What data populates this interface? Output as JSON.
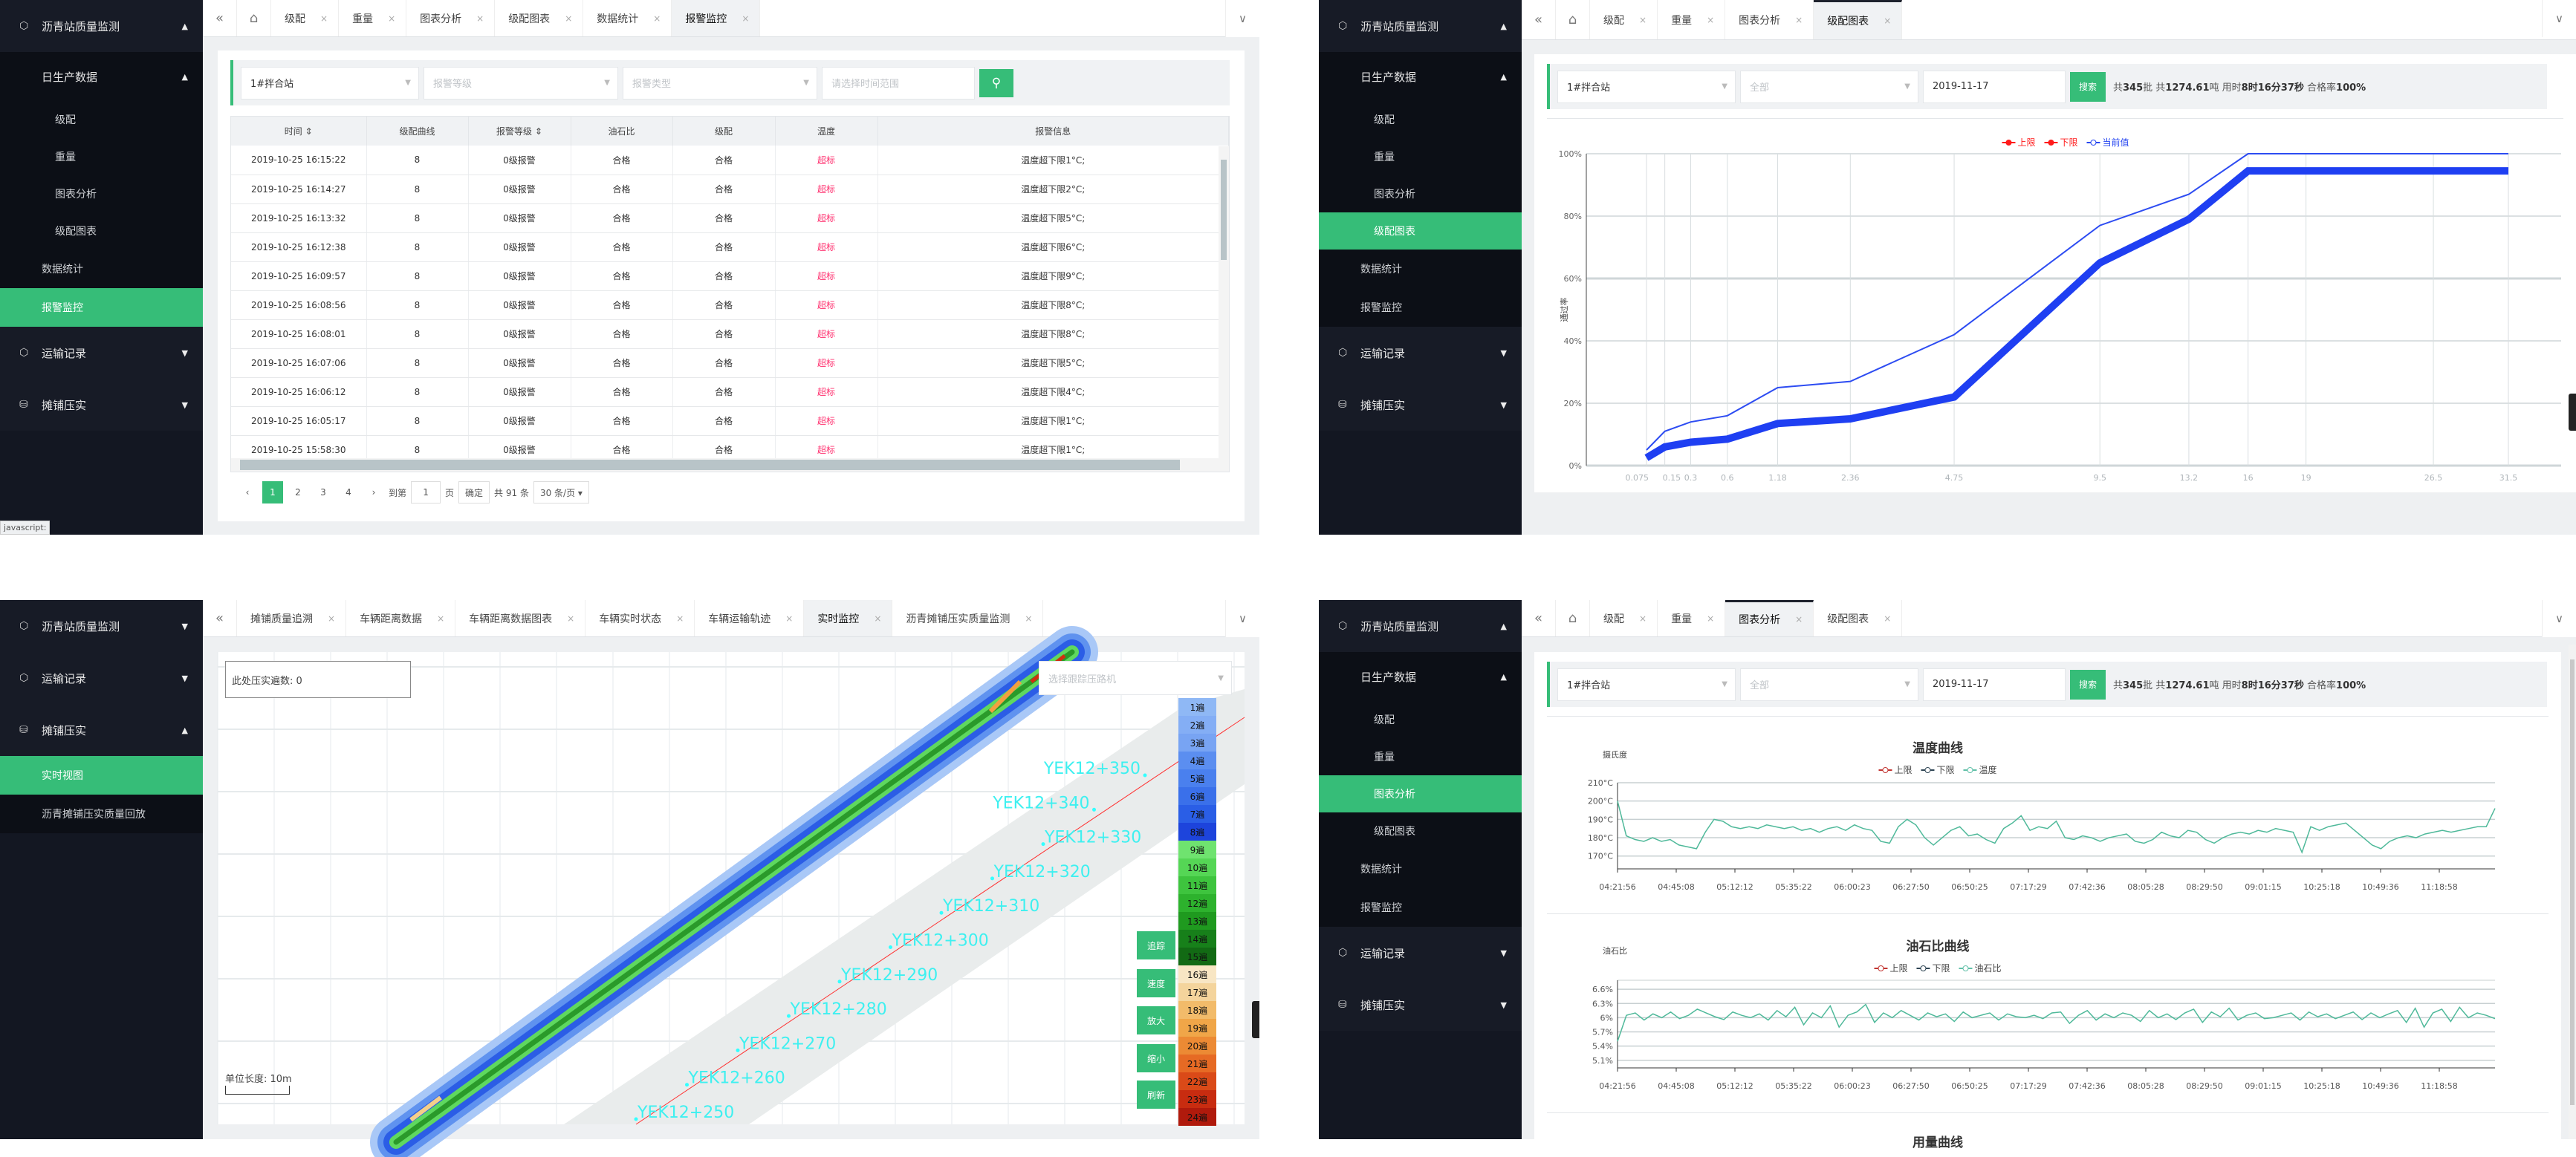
{
  "panels": {
    "alarm": {
      "sidebar": [
        {
          "label": "沥青站质量监测",
          "level": 0,
          "icon": "hexagon-icon",
          "caret": "▲"
        },
        {
          "label": "日生产数据",
          "level": 1,
          "caret": "▲"
        },
        {
          "label": "级配",
          "level": 2
        },
        {
          "label": "重量",
          "level": 2
        },
        {
          "label": "图表分析",
          "level": 2
        },
        {
          "label": "级配图表",
          "level": 2
        },
        {
          "label": "数据统计",
          "level": 3
        },
        {
          "label": "报警监控",
          "level": 3,
          "active": true
        },
        {
          "label": "运输记录",
          "level": 0,
          "icon": "hexagon-icon",
          "caret": "▼"
        },
        {
          "label": "摊铺压实",
          "level": 0,
          "icon": "database-icon",
          "caret": "▼"
        }
      ],
      "tabs": [
        {
          "label": "级配"
        },
        {
          "label": "重量"
        },
        {
          "label": "图表分析"
        },
        {
          "label": "级配图表"
        },
        {
          "label": "数据统计"
        },
        {
          "label": "报警监控",
          "active": true
        }
      ],
      "filters": {
        "station": "1#拌合站",
        "level_placeholder": "报警等级",
        "type_placeholder": "报警类型",
        "range_placeholder": "请选择时间范围"
      },
      "table": {
        "columns": [
          "时间",
          "级配曲线",
          "报警等级",
          "油石比",
          "级配",
          "温度",
          "报警信息"
        ],
        "rows": [
          [
            "2019-10-25 16:15:22",
            "8",
            "0级报警",
            "合格",
            "合格",
            "超标",
            "温度超下限1°C;"
          ],
          [
            "2019-10-25 16:14:27",
            "8",
            "0级报警",
            "合格",
            "合格",
            "超标",
            "温度超下限2°C;"
          ],
          [
            "2019-10-25 16:13:32",
            "8",
            "0级报警",
            "合格",
            "合格",
            "超标",
            "温度超下限5°C;"
          ],
          [
            "2019-10-25 16:12:38",
            "8",
            "0级报警",
            "合格",
            "合格",
            "超标",
            "温度超下限6°C;"
          ],
          [
            "2019-10-25 16:09:57",
            "8",
            "0级报警",
            "合格",
            "合格",
            "超标",
            "温度超下限9°C;"
          ],
          [
            "2019-10-25 16:08:56",
            "8",
            "0级报警",
            "合格",
            "合格",
            "超标",
            "温度超下限8°C;"
          ],
          [
            "2019-10-25 16:08:01",
            "8",
            "0级报警",
            "合格",
            "合格",
            "超标",
            "温度超下限8°C;"
          ],
          [
            "2019-10-25 16:07:06",
            "8",
            "0级报警",
            "合格",
            "合格",
            "超标",
            "温度超下限5°C;"
          ],
          [
            "2019-10-25 16:06:12",
            "8",
            "0级报警",
            "合格",
            "合格",
            "超标",
            "温度超下限4°C;"
          ],
          [
            "2019-10-25 16:05:17",
            "8",
            "0级报警",
            "合格",
            "合格",
            "超标",
            "温度超下限1°C;"
          ],
          [
            "2019-10-25 15:58:30",
            "8",
            "0级报警",
            "合格",
            "合格",
            "超标",
            "温度超下限1°C;"
          ]
        ]
      },
      "pagination": {
        "pages": [
          "1",
          "2",
          "3",
          "4"
        ],
        "current": "1",
        "goto_label": "到第",
        "goto_value": "1",
        "page_unit": "页",
        "confirm": "确定",
        "total": "共 91 条",
        "page_size": "30 条/页"
      },
      "status_tooltip": "javascript:"
    },
    "gradation": {
      "sidebar": [
        {
          "label": "沥青站质量监测",
          "level": 0,
          "icon": "hexagon-icon",
          "caret": "▲"
        },
        {
          "label": "日生产数据",
          "level": 1,
          "caret": "▲"
        },
        {
          "label": "级配",
          "level": 2
        },
        {
          "label": "重量",
          "level": 2
        },
        {
          "label": "图表分析",
          "level": 2
        },
        {
          "label": "级配图表",
          "level": 2,
          "active": true
        },
        {
          "label": "数据统计",
          "level": 3
        },
        {
          "label": "报警监控",
          "level": 3
        },
        {
          "label": "运输记录",
          "level": 0,
          "icon": "hexagon-icon",
          "caret": "▼"
        },
        {
          "label": "摊铺压实",
          "level": 0,
          "icon": "database-icon",
          "caret": "▼"
        }
      ],
      "tabs": [
        {
          "label": "级配"
        },
        {
          "label": "重量"
        },
        {
          "label": "图表分析"
        },
        {
          "label": "级配图表",
          "active": true
        }
      ],
      "filters": {
        "station": "1#拌合站",
        "type_placeholder": "全部",
        "date": "2019-11-17",
        "search": "搜索"
      },
      "summary": {
        "p1": "共",
        "batches": "345",
        "p2": "批 共",
        "tons": "1274.61",
        "p3": "吨 用时",
        "duration": "8时16分37秒",
        "p4": " 合格率",
        "rate": "100%"
      }
    },
    "realtime": {
      "sidebar": [
        {
          "label": "沥青站质量监测",
          "level": 0,
          "icon": "hexagon-icon",
          "caret": "▼"
        },
        {
          "label": "运输记录",
          "level": 0,
          "icon": "hexagon-icon",
          "caret": "▼"
        },
        {
          "label": "摊铺压实",
          "level": 0,
          "icon": "database-icon",
          "caret": "▲"
        },
        {
          "label": "实时视图",
          "level": 3,
          "active": true
        },
        {
          "label": "沥青摊铺压实质量回放",
          "level": 3
        }
      ],
      "tabs": [
        {
          "label": "摊铺质量追溯"
        },
        {
          "label": "车辆距离数据"
        },
        {
          "label": "车辆距离数据图表"
        },
        {
          "label": "车辆实时状态"
        },
        {
          "label": "车辆运输轨迹"
        },
        {
          "label": "实时监控",
          "active": true
        },
        {
          "label": "沥青摊铺压实质量监测"
        }
      ],
      "pass_count_label": "此处压实遍数: 0",
      "roller_placeholder": "选择跟踪压路机",
      "stations": [
        "YEK12+250",
        "YEK12+260",
        "YEK12+270",
        "YEK12+280",
        "YEK12+290",
        "YEK12+300",
        "YEK12+310",
        "YEK12+320",
        "YEK12+330",
        "YEK12+340",
        "YEK12+350"
      ],
      "pass_legend": [
        {
          "label": "1遍",
          "color": "#8fb8f5"
        },
        {
          "label": "2遍",
          "color": "#84aef5"
        },
        {
          "label": "3遍",
          "color": "#78a4f3"
        },
        {
          "label": "4遍",
          "color": "#5b8ef0"
        },
        {
          "label": "5遍",
          "color": "#4a80ee"
        },
        {
          "label": "6遍",
          "color": "#3a70ea"
        },
        {
          "label": "7遍",
          "color": "#2a5ee6"
        },
        {
          "label": "8遍",
          "color": "#1d44dc"
        },
        {
          "label": "9遍",
          "color": "#6fe36f"
        },
        {
          "label": "10遍",
          "color": "#55d655"
        },
        {
          "label": "11遍",
          "color": "#3ec43e"
        },
        {
          "label": "12遍",
          "color": "#2db22d"
        },
        {
          "label": "13遍",
          "color": "#1f9a1f"
        },
        {
          "label": "14遍",
          "color": "#17801a"
        },
        {
          "label": "15遍",
          "color": "#126a14"
        },
        {
          "label": "16遍",
          "color": "#f8e6c4"
        },
        {
          "label": "17遍",
          "color": "#f4d49c"
        },
        {
          "label": "18遍",
          "color": "#f2bb6a"
        },
        {
          "label": "19遍",
          "color": "#f0a648"
        },
        {
          "label": "20遍",
          "color": "#ec8a34"
        },
        {
          "label": "21遍",
          "color": "#e66a24"
        },
        {
          "label": "22遍",
          "color": "#da4a18"
        },
        {
          "label": "23遍",
          "color": "#c82c10"
        },
        {
          "label": "24遍",
          "color": "#b01a0c"
        }
      ],
      "buttons": [
        "追踪",
        "速度",
        "放大",
        "缩小",
        "刷新"
      ],
      "scale_label": "单位长度: 10m"
    },
    "analysis": {
      "sidebar": [
        {
          "label": "沥青站质量监测",
          "level": 0,
          "icon": "hexagon-icon",
          "caret": "▲"
        },
        {
          "label": "日生产数据",
          "level": 1,
          "caret": "▲"
        },
        {
          "label": "级配",
          "level": 2
        },
        {
          "label": "重量",
          "level": 2
        },
        {
          "label": "图表分析",
          "level": 2,
          "active": true
        },
        {
          "label": "级配图表",
          "level": 2
        },
        {
          "label": "数据统计",
          "level": 3
        },
        {
          "label": "报警监控",
          "level": 3
        },
        {
          "label": "运输记录",
          "level": 0,
          "icon": "hexagon-icon",
          "caret": "▼"
        },
        {
          "label": "摊铺压实",
          "level": 0,
          "icon": "database-icon",
          "caret": "▼"
        }
      ],
      "tabs": [
        {
          "label": "级配"
        },
        {
          "label": "重量"
        },
        {
          "label": "图表分析",
          "active": true
        },
        {
          "label": "级配图表"
        }
      ],
      "filters": {
        "station": "1#拌合站",
        "type_placeholder": "全部",
        "date": "2019-11-17",
        "search": "搜索"
      },
      "summary": {
        "p1": "共",
        "batches": "345",
        "p2": "批 共",
        "tons": "1274.61",
        "p3": "吨 用时",
        "duration": "8时16分37秒",
        "p4": " 合格率",
        "rate": "100%"
      },
      "next_chart_title": "用量曲线"
    }
  },
  "chart_data": [
    {
      "type": "line",
      "title": "",
      "ylabel": "通过率",
      "xscale": "sqrt",
      "categories": [
        0.075,
        0.15,
        0.3,
        0.6,
        1.18,
        2.36,
        4.75,
        9.5,
        13.2,
        16,
        19,
        26.5,
        31.5
      ],
      "x_tick_labels": [
        "0.075",
        "0.15",
        "0.3",
        "0.6",
        "1.18",
        "2.36",
        "4.75",
        "9.5",
        "13.2",
        "16",
        "19",
        "26.5",
        "31.5"
      ],
      "y_ticks": [
        "0%",
        "20%",
        "40%",
        "60%",
        "80%",
        "100%"
      ],
      "ylim": [
        0,
        100
      ],
      "grid": true,
      "legend": "top-center",
      "legend_entries": [
        {
          "name": "上限",
          "color": "#ff1a1a",
          "marker": "filled"
        },
        {
          "name": "下限",
          "color": "#ff1a1a",
          "marker": "filled"
        },
        {
          "name": "当前值",
          "color": "#2747f0",
          "marker": "hollow"
        }
      ],
      "series": [
        {
          "color": "#2d4cf2",
          "width": 2,
          "values": [
            5,
            11,
            14,
            16,
            25,
            27,
            42,
            77,
            87,
            100,
            100,
            100,
            100
          ]
        },
        {
          "color": "#1f3ff2",
          "width": 10,
          "values": [
            2.5,
            6,
            7.5,
            8.5,
            13.5,
            15,
            22,
            65,
            79,
            94.5,
            94.5,
            94.5,
            94.5
          ]
        }
      ]
    },
    {
      "type": "line",
      "title": "温度曲线",
      "ylabel": "摄氏度",
      "ylim": [
        163,
        210
      ],
      "y_ticks": [
        {
          "v": 170,
          "label": "170°C"
        },
        {
          "v": 180,
          "label": "180°C"
        },
        {
          "v": 190,
          "label": "190°C"
        },
        {
          "v": 200,
          "label": "200°C"
        },
        {
          "v": 210,
          "label": "210°C"
        }
      ],
      "x_tick_labels": [
        "04:21:56",
        "04:45:08",
        "05:12:12",
        "05:35:22",
        "06:00:23",
        "06:27:50",
        "06:50:25",
        "07:17:29",
        "07:42:36",
        "08:05:28",
        "08:29:50",
        "09:01:15",
        "10:25:18",
        "10:49:36",
        "11:18:58"
      ],
      "legend": "top-center",
      "legend_entries": [
        {
          "name": "上限",
          "color": "#c23531"
        },
        {
          "name": "下限",
          "color": "#2f4554"
        },
        {
          "name": "温度",
          "color": "#61c0a8"
        }
      ],
      "series": [
        {
          "name": "温度",
          "color": "#4fb99a",
          "values": [
            200,
            181,
            179,
            178,
            180,
            178,
            179,
            176,
            175,
            174,
            183,
            190,
            189,
            186,
            185,
            186,
            185,
            187,
            186,
            185,
            186,
            184,
            185,
            183,
            185,
            186,
            184,
            187,
            185,
            184,
            178,
            177,
            186,
            190,
            187,
            180,
            176,
            180,
            184,
            186,
            181,
            182,
            179,
            177,
            185,
            188,
            192,
            184,
            186,
            185,
            189,
            180,
            179,
            181,
            180,
            178,
            180,
            181,
            182,
            178,
            177,
            179,
            183,
            181,
            180,
            184,
            183,
            179,
            177,
            180,
            182,
            183,
            182,
            184,
            183,
            185,
            184,
            183,
            172,
            186,
            184,
            186,
            187,
            188,
            184,
            180,
            176,
            174,
            178,
            180,
            181,
            180,
            182,
            183,
            184,
            183,
            184,
            185,
            186,
            186,
            196
          ]
        }
      ]
    },
    {
      "type": "line",
      "title": "油石比曲线",
      "ylabel": "油石比",
      "ylim": [
        4.94,
        6.79
      ],
      "y_ticks": [
        {
          "v": 5.1,
          "label": "5.1%"
        },
        {
          "v": 5.4,
          "label": "5.4%"
        },
        {
          "v": 5.7,
          "label": "5.7%"
        },
        {
          "v": 6.0,
          "label": "6%"
        },
        {
          "v": 6.3,
          "label": "6.3%"
        },
        {
          "v": 6.6,
          "label": "6.6%"
        }
      ],
      "x_tick_labels": [
        "04:21:56",
        "04:45:08",
        "05:12:12",
        "05:35:22",
        "06:00:23",
        "06:27:50",
        "06:50:25",
        "07:17:29",
        "07:42:36",
        "08:05:28",
        "08:29:50",
        "09:01:15",
        "10:25:18",
        "10:49:36",
        "11:18:58"
      ],
      "legend": "top-center",
      "legend_entries": [
        {
          "name": "上限",
          "color": "#c23531"
        },
        {
          "name": "下限",
          "color": "#2f4554"
        },
        {
          "name": "油石比",
          "color": "#61c0a8"
        }
      ],
      "series": [
        {
          "name": "油石比",
          "color": "#4fb99a",
          "values": [
            5.5,
            6.05,
            6.1,
            5.95,
            6.08,
            6.0,
            6.12,
            5.98,
            6.05,
            6.18,
            6.1,
            6.02,
            5.96,
            6.12,
            6.05,
            6.0,
            6.08,
            5.95,
            6.15,
            6.02,
            6.22,
            5.85,
            6.1,
            6.0,
            6.25,
            5.8,
            6.05,
            6.12,
            6.28,
            5.9,
            6.1,
            6.0,
            6.15,
            6.05,
            5.95,
            6.1,
            6.02,
            6.08,
            5.92,
            6.12,
            6.0,
            6.05,
            6.1,
            5.95,
            6.08,
            6.02,
            6.0,
            6.05,
            5.98,
            6.1,
            6.12,
            5.88,
            6.05,
            6.15,
            5.95,
            6.08,
            6.0,
            6.1,
            6.05,
            5.92,
            6.15,
            6.0,
            6.08,
            5.96,
            6.1,
            6.18,
            5.9,
            6.12,
            6.02,
            6.2,
            5.95,
            6.05,
            6.1,
            5.98,
            6.0,
            6.05,
            6.1,
            5.95,
            6.12,
            6.02,
            6.08,
            5.98,
            6.05,
            6.12,
            5.96,
            6.1,
            6.0,
            6.08,
            6.15,
            5.9,
            6.2,
            5.8,
            6.1,
            6.18,
            5.92,
            6.22,
            6.0,
            6.1,
            6.05,
            5.98
          ]
        }
      ]
    }
  ]
}
